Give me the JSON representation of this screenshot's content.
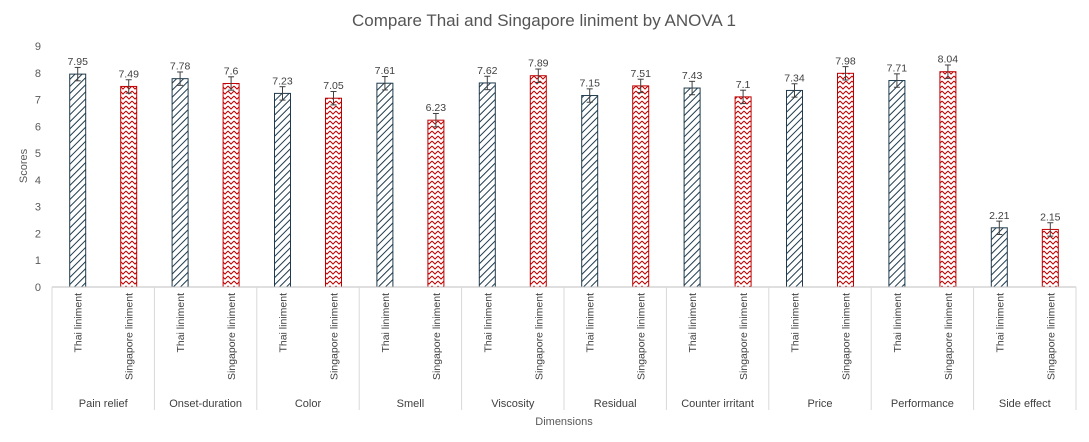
{
  "chart_data": {
    "type": "bar",
    "title": "Compare Thai and Singapore liniment by ANOVA 1",
    "xlabel": "Dimensions",
    "ylabel": "Scores",
    "ylim": [
      0,
      9
    ],
    "yticks": [
      0,
      1,
      2,
      3,
      4,
      5,
      6,
      7,
      8,
      9
    ],
    "grid": false,
    "legend": "none",
    "colors": {
      "thai": "#1f3b4d",
      "singapore": "#c00000"
    },
    "groups": [
      {
        "name": "Pain relief",
        "bars": [
          {
            "label": "Thai liniment",
            "value": 7.95
          },
          {
            "label": "Singapore liniment",
            "value": 7.49
          }
        ]
      },
      {
        "name": "Onset-duration",
        "bars": [
          {
            "label": "Thai liniment",
            "value": 7.78
          },
          {
            "label": "Singapore liniment",
            "value": 7.6
          }
        ]
      },
      {
        "name": "Color",
        "bars": [
          {
            "label": "Thai liniment",
            "value": 7.23
          },
          {
            "label": "Singapore liniment",
            "value": 7.05
          }
        ]
      },
      {
        "name": "Smell",
        "bars": [
          {
            "label": "Thai liniment",
            "value": 7.61
          },
          {
            "label": "Singapore liniment",
            "value": 6.23
          }
        ]
      },
      {
        "name": "Viscosity",
        "bars": [
          {
            "label": "Thai liniment",
            "value": 7.62
          },
          {
            "label": "Singapore liniment",
            "value": 7.89
          }
        ]
      },
      {
        "name": "Residual",
        "bars": [
          {
            "label": "Thai liniment",
            "value": 7.15
          },
          {
            "label": "Singapore liniment",
            "value": 7.51
          }
        ]
      },
      {
        "name": "Counter irritant",
        "bars": [
          {
            "label": "Thai liniment",
            "value": 7.43
          },
          {
            "label": "Singapore liniment",
            "value": 7.1
          }
        ]
      },
      {
        "name": "Price",
        "bars": [
          {
            "label": "Thai liniment",
            "value": 7.34
          },
          {
            "label": "Singapore liniment",
            "value": 7.98
          }
        ]
      },
      {
        "name": "Performance",
        "bars": [
          {
            "label": "Thai liniment",
            "value": 7.71
          },
          {
            "label": "Singapore liniment",
            "value": 8.04
          }
        ]
      },
      {
        "name": "Side effect",
        "bars": [
          {
            "label": "Thai liniment",
            "value": 2.21
          },
          {
            "label": "Singapore liniment",
            "value": 2.15
          }
        ]
      }
    ]
  }
}
